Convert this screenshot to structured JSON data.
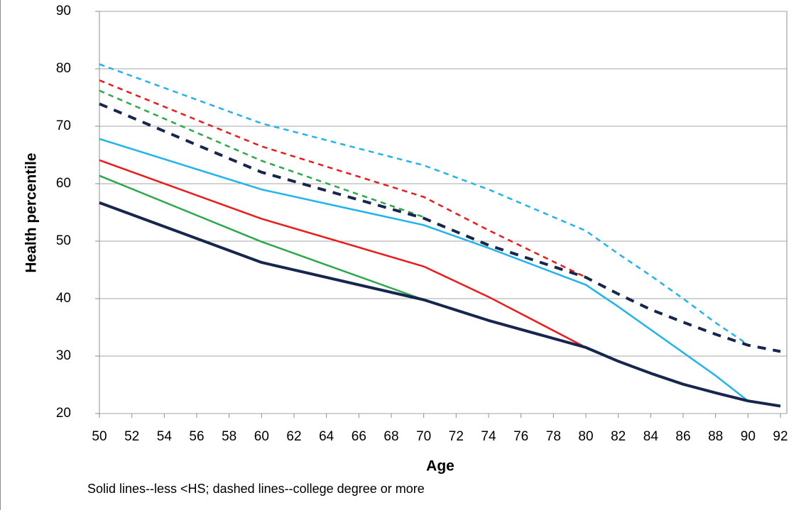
{
  "chart_data": {
    "type": "line",
    "y_label": "Health percentile",
    "x_label": "Age",
    "note": "Solid lines--less <HS; dashed lines--college degree or more",
    "x": [
      50,
      60,
      70,
      74,
      80,
      82,
      84,
      86,
      88,
      90,
      92
    ],
    "xlim": [
      50,
      92
    ],
    "xticks": [
      50,
      52,
      54,
      56,
      58,
      60,
      62,
      64,
      66,
      68,
      70,
      72,
      74,
      76,
      78,
      80,
      82,
      84,
      86,
      88,
      90,
      92
    ],
    "ylim": [
      20,
      90
    ],
    "yticks": [
      20,
      30,
      40,
      50,
      60,
      70,
      80,
      90
    ],
    "grid": true,
    "series": [
      {
        "color": "#1fb4ef",
        "style": "dashed",
        "line_width": 2.5,
        "values": [
          80.8,
          70.5,
          63.2,
          59.0,
          51.8,
          47.8,
          44.0,
          40.0,
          35.8,
          32.0,
          null
        ]
      },
      {
        "color": "#f01a1a",
        "style": "dashed",
        "line_width": 2.5,
        "values": [
          78.0,
          66.5,
          57.7,
          51.9,
          43.7,
          null,
          null,
          null,
          null,
          null,
          null
        ]
      },
      {
        "color": "#2ba84a",
        "style": "dashed",
        "line_width": 2.5,
        "values": [
          76.2,
          64.0,
          54.2,
          null,
          null,
          null,
          null,
          null,
          null,
          null,
          null
        ]
      },
      {
        "color": "#17264f",
        "style": "dashed",
        "line_width": 4,
        "values": [
          73.9,
          62.0,
          54.0,
          49.3,
          43.7,
          40.8,
          38.1,
          35.9,
          33.8,
          31.9,
          30.8
        ]
      },
      {
        "color": "#1fb4ef",
        "style": "solid",
        "line_width": 2.5,
        "values": [
          67.8,
          59.0,
          52.8,
          48.8,
          42.4,
          38.6,
          34.6,
          30.6,
          26.6,
          22.2,
          null
        ]
      },
      {
        "color": "#f01a1a",
        "style": "solid",
        "line_width": 2.5,
        "values": [
          64.1,
          53.9,
          45.6,
          40.3,
          31.5,
          null,
          null,
          null,
          null,
          null,
          null
        ]
      },
      {
        "color": "#2ba84a",
        "style": "solid",
        "line_width": 2.5,
        "values": [
          61.4,
          49.9,
          39.8,
          null,
          null,
          null,
          null,
          null,
          null,
          null,
          null
        ]
      },
      {
        "color": "#17264f",
        "style": "solid",
        "line_width": 4,
        "values": [
          56.7,
          46.3,
          39.8,
          36.2,
          31.5,
          29.1,
          27.0,
          25.1,
          23.6,
          22.2,
          21.3
        ]
      }
    ]
  }
}
